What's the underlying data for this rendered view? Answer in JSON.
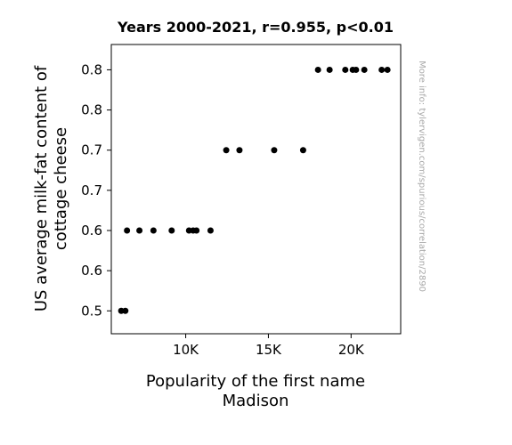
{
  "chart_data": {
    "type": "scatter",
    "title": "Years 2000-2021, r=0.955, p<0.01",
    "xlabel_lines": [
      "Popularity of the first name",
      "Madison"
    ],
    "ylabel_lines": [
      "US average milk-fat content of",
      "cottage cheese"
    ],
    "watermark": "More info: tylervigen.com/spurious/correlation/2890",
    "xlim": [
      5500,
      23000
    ],
    "ylim": [
      0.4715,
      0.8315
    ],
    "x_ticks": [
      {
        "value": 10000,
        "label": "10K"
      },
      {
        "value": 15000,
        "label": "15K"
      },
      {
        "value": 20000,
        "label": "20K"
      }
    ],
    "y_ticks": [
      {
        "value": 0.5,
        "label": "0.5"
      },
      {
        "value": 0.55,
        "label": "0.6"
      },
      {
        "value": 0.6,
        "label": "0.6"
      },
      {
        "value": 0.65,
        "label": "0.7"
      },
      {
        "value": 0.7,
        "label": "0.7"
      },
      {
        "value": 0.75,
        "label": "0.8"
      },
      {
        "value": 0.8,
        "label": "0.8"
      }
    ],
    "marker_color": "#000000",
    "grid": false,
    "points": [
      {
        "x": 6100,
        "y": 0.5
      },
      {
        "x": 6350,
        "y": 0.5
      },
      {
        "x": 6450,
        "y": 0.6
      },
      {
        "x": 7200,
        "y": 0.6
      },
      {
        "x": 8050,
        "y": 0.6
      },
      {
        "x": 9150,
        "y": 0.6
      },
      {
        "x": 10200,
        "y": 0.6
      },
      {
        "x": 10450,
        "y": 0.6
      },
      {
        "x": 10650,
        "y": 0.6
      },
      {
        "x": 11500,
        "y": 0.6
      },
      {
        "x": 12450,
        "y": 0.7
      },
      {
        "x": 13250,
        "y": 0.7
      },
      {
        "x": 15350,
        "y": 0.7
      },
      {
        "x": 17100,
        "y": 0.7
      },
      {
        "x": 18000,
        "y": 0.8
      },
      {
        "x": 18700,
        "y": 0.8
      },
      {
        "x": 19650,
        "y": 0.8
      },
      {
        "x": 20100,
        "y": 0.8
      },
      {
        "x": 20300,
        "y": 0.8
      },
      {
        "x": 20800,
        "y": 0.8
      },
      {
        "x": 21850,
        "y": 0.8
      },
      {
        "x": 22200,
        "y": 0.8
      }
    ]
  }
}
